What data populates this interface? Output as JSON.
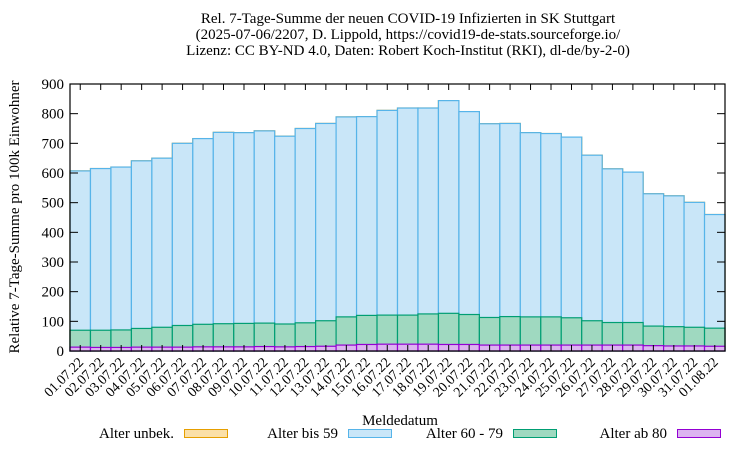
{
  "chart_data": {
    "type": "bar",
    "stacked": true,
    "title": "Rel. 7-Tage-Summe der neuen COVID-19 Infizierten in SK Stuttgart",
    "subtitle": "(2025-07-06/2207, D. Lippold, https://covid19-de-stats.sourceforge.io/",
    "subtitle2": "Lizenz: CC BY-ND 4.0, Daten: Robert Koch-Institut (RKI), dl-de/by-2-0)",
    "xlabel": "Meldedatum",
    "ylabel": "Relative 7-Tage-Summe pro 100k Einwohner",
    "ylim": [
      0,
      900
    ],
    "yticks": [
      "0",
      "100",
      "200",
      "300",
      "400",
      "500",
      "600",
      "700",
      "800",
      "900"
    ],
    "grid": false,
    "legend_position": "bottom",
    "categories": [
      "01.07.22",
      "02.07.22",
      "03.07.22",
      "04.07.22",
      "05.07.22",
      "06.07.22",
      "07.07.22",
      "08.07.22",
      "09.07.22",
      "10.07.22",
      "11.07.22",
      "12.07.22",
      "13.07.22",
      "14.07.22",
      "15.07.22",
      "16.07.22",
      "17.07.22",
      "18.07.22",
      "19.07.22",
      "20.07.22",
      "21.07.22",
      "22.07.22",
      "23.07.22",
      "24.07.22",
      "25.07.22",
      "26.07.22",
      "27.07.22",
      "28.07.22",
      "29.07.22",
      "30.07.22",
      "31.07.22",
      "01.08.22"
    ],
    "series": [
      {
        "name": "Alter ab 80",
        "color": "#dcb4f0",
        "stroke": "#9400d3",
        "values": [
          13,
          12,
          12,
          13,
          13,
          13,
          14,
          14,
          14,
          15,
          14,
          15,
          16,
          20,
          22,
          23,
          23,
          23,
          22,
          22,
          20,
          20,
          20,
          20,
          20,
          20,
          20,
          20,
          18,
          17,
          17,
          16
        ]
      },
      {
        "name": "Alter 60 - 79",
        "color": "#9fd9c0",
        "stroke": "#009e73",
        "values": [
          57,
          58,
          59,
          63,
          67,
          73,
          76,
          78,
          79,
          79,
          77,
          80,
          86,
          95,
          98,
          98,
          98,
          102,
          105,
          101,
          93,
          96,
          95,
          95,
          92,
          82,
          76,
          76,
          66,
          65,
          63,
          61
        ]
      },
      {
        "name": "Alter bis 59",
        "color": "#c9e6f8",
        "stroke": "#56b4e9",
        "values": [
          537,
          545,
          549,
          565,
          570,
          614,
          626,
          645,
          643,
          648,
          633,
          655,
          665,
          674,
          670,
          690,
          698,
          694,
          717,
          684,
          653,
          651,
          621,
          618,
          609,
          558,
          518,
          507,
          446,
          441,
          421,
          383
        ]
      },
      {
        "name": "Alter unbek.",
        "color": "#fbe0a8",
        "stroke": "#e69f00",
        "values": [
          0,
          0,
          0,
          0,
          0,
          0,
          0,
          0,
          0,
          0,
          0,
          0,
          0,
          0,
          0,
          0,
          0,
          0,
          0,
          0,
          0,
          0,
          0,
          0,
          0,
          0,
          0,
          0,
          0,
          0,
          0,
          0
        ]
      }
    ],
    "legend": [
      {
        "label": "Alter unbek.",
        "color": "#fbe0a8",
        "stroke": "#e69f00"
      },
      {
        "label": "Alter bis 59",
        "color": "#c9e6f8",
        "stroke": "#56b4e9"
      },
      {
        "label": "Alter 60 - 79",
        "color": "#9fd9c0",
        "stroke": "#009e73"
      },
      {
        "label": "Alter ab 80",
        "color": "#dcb4f0",
        "stroke": "#9400d3"
      }
    ]
  }
}
